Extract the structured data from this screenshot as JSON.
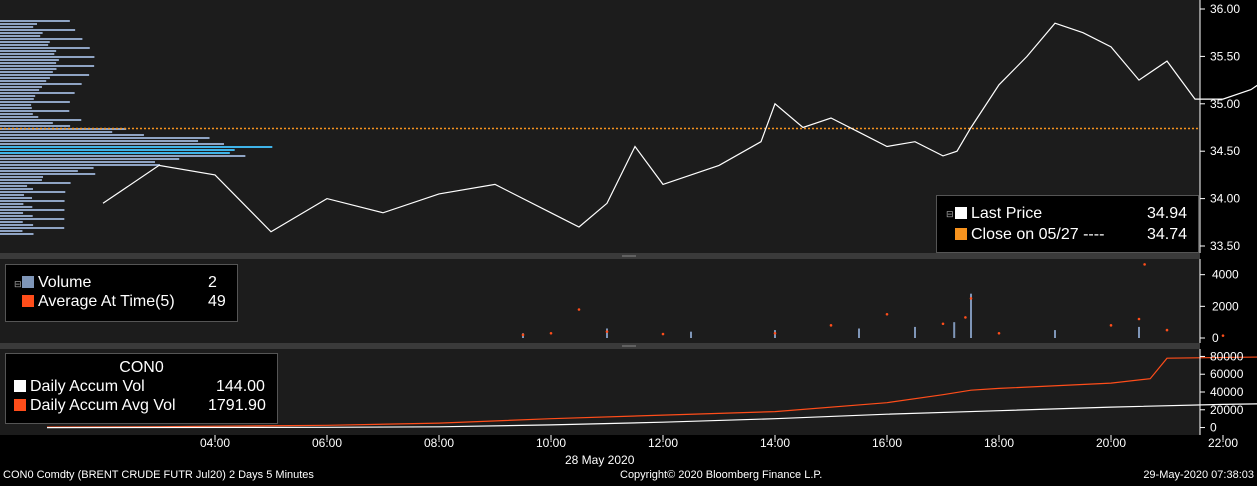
{
  "footer": {
    "left": "CON0 Comdty (BRENT CRUDE FUTR  Jul20) 2 Days 5 Minutes",
    "center": "Copyright© 2020 Bloomberg Finance L.P.",
    "right": "29-May-2020 07:38:03"
  },
  "x_date_label": "28 May 2020",
  "colors": {
    "background": "#1c1c1c",
    "price_line": "#ffffff",
    "close_line": "#f7931e",
    "volume_bar": "#7f96b8",
    "avg_dots": "#ff4d1a",
    "accum_vol": "#ffffff",
    "accum_avg": "#ff4d1a",
    "profile": "#8fa4c4",
    "profile_poc": "#3fb3e8"
  },
  "price_legend": {
    "rows": [
      {
        "label": "Last Price",
        "value": "34.94",
        "color": "#ffffff"
      },
      {
        "label": "Close on 05/27 ----",
        "value": "34.74",
        "color": "#f7931e"
      }
    ]
  },
  "volume_legend": {
    "rows": [
      {
        "label": "Volume",
        "value": "2",
        "color": "#7f96b8"
      },
      {
        "label": "Average At Time(5)",
        "value": "49",
        "color": "#ff4d1a"
      }
    ]
  },
  "accum_legend": {
    "title": "CON0",
    "rows": [
      {
        "label": "Daily Accum Vol",
        "value": "144.00",
        "color": "#ffffff"
      },
      {
        "label": "Daily Accum Avg Vol",
        "value": "1791.90",
        "color": "#ff4d1a"
      }
    ]
  },
  "chart_data": [
    {
      "type": "line",
      "x_ticks": [
        "04:00",
        "06:00",
        "08:00",
        "10:00",
        "12:00",
        "14:00",
        "16:00",
        "18:00",
        "20:00",
        "22:00"
      ],
      "y_ticks": [
        "33.50",
        "34.00",
        "34.50",
        "35.00",
        "35.50",
        "36.00"
      ],
      "ylim": [
        33.5,
        36.0
      ],
      "close_reference": 34.74,
      "series": [
        {
          "name": "Last Price",
          "x": [
            2.0,
            3.0,
            4.0,
            5.0,
            6.0,
            7.0,
            8.0,
            9.0,
            10.0,
            10.5,
            11.0,
            11.5,
            12.0,
            13.0,
            13.75,
            14.0,
            14.5,
            15.0,
            15.5,
            16.0,
            16.5,
            17.0,
            17.25,
            17.5,
            18.0,
            18.5,
            19.0,
            19.5,
            20.0,
            20.5,
            21.0,
            21.5,
            22.0,
            22.5,
            23.0,
            23.5
          ],
          "y": [
            33.95,
            34.35,
            34.25,
            33.65,
            34.0,
            33.85,
            34.05,
            34.15,
            33.85,
            33.7,
            33.95,
            34.55,
            34.15,
            34.35,
            34.6,
            35.0,
            34.75,
            34.85,
            34.7,
            34.55,
            34.6,
            34.45,
            34.5,
            34.75,
            35.2,
            35.5,
            35.85,
            35.75,
            35.6,
            35.25,
            35.45,
            35.05,
            35.05,
            35.15,
            35.35,
            35.4
          ]
        }
      ]
    },
    {
      "type": "bar",
      "ylim": [
        0,
        4800
      ],
      "y_ticks": [
        "0",
        "2000",
        "4000"
      ],
      "series": [
        {
          "name": "Volume",
          "x": [
            9.5,
            11.0,
            12.5,
            14.0,
            15.5,
            16.5,
            17.2,
            17.5,
            19.0,
            20.5
          ],
          "y": [
            300,
            600,
            400,
            500,
            600,
            700,
            1000,
            2800,
            500,
            700
          ]
        },
        {
          "name": "Average At Time(5)",
          "x": [
            9.5,
            10.0,
            10.5,
            11.0,
            12.0,
            14.0,
            15.0,
            16.0,
            17.0,
            17.4,
            17.5,
            18.0,
            20.0,
            20.5,
            20.6,
            21.0,
            22.0
          ],
          "y": [
            200,
            300,
            1800,
            400,
            250,
            300,
            800,
            1500,
            900,
            1300,
            2500,
            300,
            800,
            1200,
            4650,
            500,
            150
          ]
        }
      ]
    },
    {
      "type": "line",
      "ylim": [
        -5000,
        85000
      ],
      "y_ticks": [
        "0",
        "20000",
        "40000",
        "60000",
        "80000"
      ],
      "series": [
        {
          "name": "Daily Accum Avg Vol",
          "x": [
            1.0,
            3.0,
            6.0,
            8.0,
            10.0,
            12.0,
            14.0,
            16.0,
            17.0,
            17.5,
            18.0,
            20.0,
            20.7,
            21.0,
            23.5
          ],
          "y": [
            500,
            1000,
            2500,
            5000,
            10000,
            14000,
            18000,
            28000,
            37000,
            42000,
            44000,
            50000,
            55000,
            78000,
            80000
          ]
        },
        {
          "name": "Daily Accum Vol",
          "x": [
            1.0,
            6.0,
            8.0,
            10.0,
            12.0,
            14.0,
            16.0,
            18.0,
            20.0,
            22.0,
            23.5
          ],
          "y": [
            0,
            300,
            800,
            3000,
            6000,
            10000,
            15000,
            19000,
            23000,
            26000,
            27500
          ]
        }
      ]
    }
  ]
}
